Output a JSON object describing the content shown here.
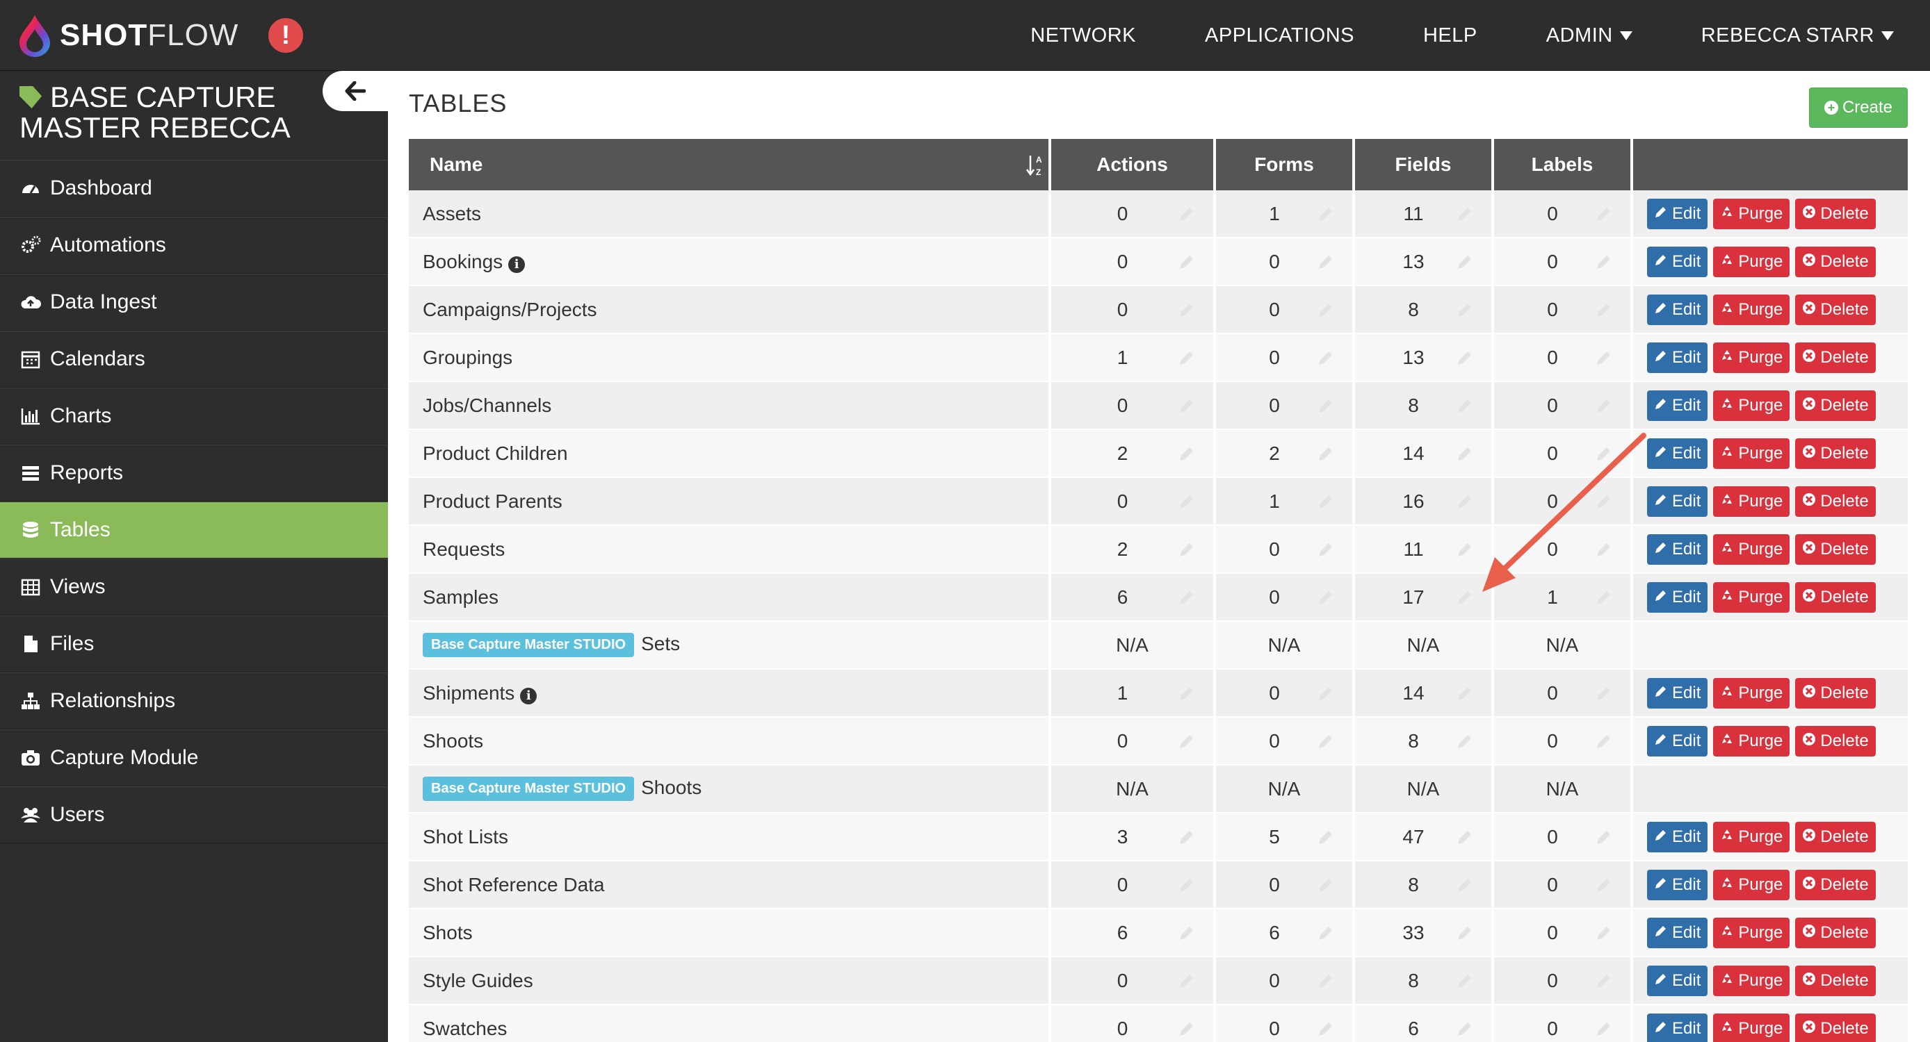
{
  "topbar": {
    "logo_bold": "SHOT",
    "logo_light": "FLOW",
    "nav": [
      {
        "label": "NETWORK",
        "caret": false
      },
      {
        "label": "APPLICATIONS",
        "caret": false
      },
      {
        "label": "HELP",
        "caret": false
      },
      {
        "label": "ADMIN",
        "caret": true
      },
      {
        "label": "REBECCA STARR",
        "caret": true
      }
    ],
    "alert_symbol": "!"
  },
  "sidebar": {
    "app_title": "BASE CAPTURE MASTER REBECCA",
    "items": [
      {
        "label": "Dashboard",
        "icon": "dashboard-icon",
        "active": false
      },
      {
        "label": "Automations",
        "icon": "cogs-icon",
        "active": false
      },
      {
        "label": "Data Ingest",
        "icon": "cloud-upload-icon",
        "active": false
      },
      {
        "label": "Calendars",
        "icon": "calendar-icon",
        "active": false
      },
      {
        "label": "Charts",
        "icon": "bar-chart-icon",
        "active": false
      },
      {
        "label": "Reports",
        "icon": "list-icon",
        "active": false
      },
      {
        "label": "Tables",
        "icon": "database-icon",
        "active": true
      },
      {
        "label": "Views",
        "icon": "table-icon",
        "active": false
      },
      {
        "label": "Files",
        "icon": "file-icon",
        "active": false
      },
      {
        "label": "Relationships",
        "icon": "sitemap-icon",
        "active": false
      },
      {
        "label": "Capture Module",
        "icon": "camera-icon",
        "active": false
      },
      {
        "label": "Users",
        "icon": "users-icon",
        "active": false
      }
    ]
  },
  "main": {
    "title": "TABLES",
    "create_label": "Create",
    "columns": [
      "Name",
      "Actions",
      "Forms",
      "Fields",
      "Labels"
    ],
    "buttons": {
      "edit": "Edit",
      "purge": "Purge",
      "delete": "Delete"
    },
    "rows": [
      {
        "name": "Assets",
        "actions": "0",
        "forms": "1",
        "fields": "11",
        "labels": "0",
        "type": "local",
        "info": false
      },
      {
        "name": "Bookings",
        "actions": "0",
        "forms": "0",
        "fields": "13",
        "labels": "0",
        "type": "local",
        "info": true
      },
      {
        "name": "Campaigns/Projects",
        "actions": "0",
        "forms": "0",
        "fields": "8",
        "labels": "0",
        "type": "local",
        "info": false
      },
      {
        "name": "Groupings",
        "actions": "1",
        "forms": "0",
        "fields": "13",
        "labels": "0",
        "type": "local",
        "info": false
      },
      {
        "name": "Jobs/Channels",
        "actions": "0",
        "forms": "0",
        "fields": "8",
        "labels": "0",
        "type": "local",
        "info": false
      },
      {
        "name": "Product Children",
        "actions": "2",
        "forms": "2",
        "fields": "14",
        "labels": "0",
        "type": "local",
        "info": false
      },
      {
        "name": "Product Parents",
        "actions": "0",
        "forms": "1",
        "fields": "16",
        "labels": "0",
        "type": "local",
        "info": false
      },
      {
        "name": "Requests",
        "actions": "2",
        "forms": "0",
        "fields": "11",
        "labels": "0",
        "type": "local",
        "info": false
      },
      {
        "name": "Samples",
        "actions": "6",
        "forms": "0",
        "fields": "17",
        "labels": "1",
        "type": "local",
        "info": false
      },
      {
        "name": "Sets",
        "badge": "Base Capture Master STUDIO",
        "actions": "N/A",
        "forms": "N/A",
        "fields": "N/A",
        "labels": "N/A",
        "type": "shared",
        "info": false
      },
      {
        "name": "Shipments",
        "actions": "1",
        "forms": "0",
        "fields": "14",
        "labels": "0",
        "type": "local",
        "info": true
      },
      {
        "name": "Shoots",
        "actions": "0",
        "forms": "0",
        "fields": "8",
        "labels": "0",
        "type": "local",
        "info": false
      },
      {
        "name": "Shoots",
        "badge": "Base Capture Master STUDIO",
        "actions": "N/A",
        "forms": "N/A",
        "fields": "N/A",
        "labels": "N/A",
        "type": "shared",
        "info": false
      },
      {
        "name": "Shot Lists",
        "actions": "3",
        "forms": "5",
        "fields": "47",
        "labels": "0",
        "type": "local",
        "info": false
      },
      {
        "name": "Shot Reference Data",
        "actions": "0",
        "forms": "0",
        "fields": "8",
        "labels": "0",
        "type": "local",
        "info": false
      },
      {
        "name": "Shots",
        "actions": "6",
        "forms": "6",
        "fields": "33",
        "labels": "0",
        "type": "local",
        "info": false
      },
      {
        "name": "Style Guides",
        "actions": "0",
        "forms": "0",
        "fields": "8",
        "labels": "0",
        "type": "local",
        "info": false
      },
      {
        "name": "Swatches",
        "actions": "0",
        "forms": "0",
        "fields": "6",
        "labels": "0",
        "type": "local",
        "info": false
      }
    ]
  },
  "colors": {
    "topbar": "#2d2d2d",
    "sidebar_active": "#8bbb58",
    "header": "#555555",
    "edit": "#2f6ea8",
    "danger": "#d9323d",
    "badge": "#5bc0de",
    "annotation_arrow": "#e8604c"
  }
}
